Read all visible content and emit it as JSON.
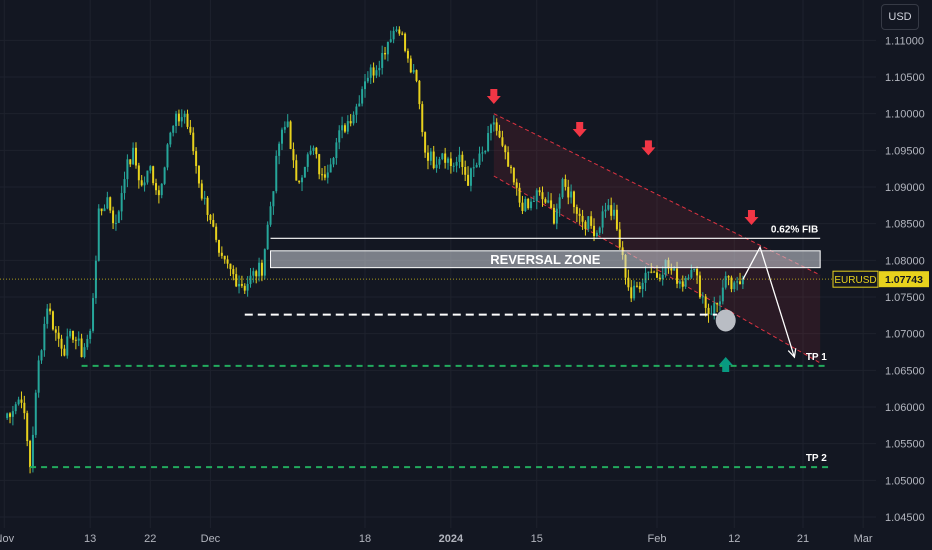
{
  "currency_button": "USD",
  "price_tag": {
    "symbol": "EURUSD",
    "price": "1.07743"
  },
  "chart_data": {
    "type": "candlestick",
    "symbol": "EURUSD",
    "x_ticks": [
      {
        "label": "Nov",
        "bar": 0
      },
      {
        "label": "13",
        "bar": 10
      },
      {
        "label": "22",
        "bar": 17
      },
      {
        "label": "Dec",
        "bar": 24
      },
      {
        "label": "18",
        "bar": 42
      },
      {
        "label": "2024",
        "bar": 52,
        "bold": true
      },
      {
        "label": "15",
        "bar": 62
      },
      {
        "label": "Feb",
        "bar": 76
      },
      {
        "label": "12",
        "bar": 85
      },
      {
        "label": "21",
        "bar": 93
      },
      {
        "label": "Mar",
        "bar": 100
      }
    ],
    "y_ticks": [
      "1.11000",
      "1.10500",
      "1.10000",
      "1.09500",
      "1.09000",
      "1.08500",
      "1.08000",
      "1.07500",
      "1.07000",
      "1.06500",
      "1.06000",
      "1.05500",
      "1.05000",
      "1.04500"
    ],
    "ylim": [
      1.0435,
      1.1155
    ],
    "xlim": [
      -0.5,
      101.5
    ],
    "close_path": [
      [
        0,
        1.0585
      ],
      [
        2,
        1.0615
      ],
      [
        3,
        1.052
      ],
      [
        4,
        1.066
      ],
      [
        5,
        1.074
      ],
      [
        6,
        1.07
      ],
      [
        7,
        1.068
      ],
      [
        8,
        1.07
      ],
      [
        9,
        1.0675
      ],
      [
        10,
        1.07
      ],
      [
        11,
        1.086
      ],
      [
        12,
        1.0885
      ],
      [
        13,
        1.0845
      ],
      [
        14,
        1.092
      ],
      [
        15,
        1.0945
      ],
      [
        16,
        1.09
      ],
      [
        17,
        1.0925
      ],
      [
        18,
        1.089
      ],
      [
        19,
        1.096
      ],
      [
        20,
        1.099
      ],
      [
        21,
        1.1
      ],
      [
        22,
        1.095
      ],
      [
        23,
        1.089
      ],
      [
        24,
        1.086
      ],
      [
        25,
        1.08
      ],
      [
        26,
        1.079
      ],
      [
        27,
        1.0775
      ],
      [
        28,
        1.0765
      ],
      [
        29,
        1.078
      ],
      [
        30,
        1.079
      ],
      [
        32,
        1.096
      ],
      [
        33,
        1.099
      ],
      [
        34,
        1.09
      ],
      [
        35,
        1.0935
      ],
      [
        36,
        1.095
      ],
      [
        37,
        1.091
      ],
      [
        38,
        1.094
      ],
      [
        39,
        1.097
      ],
      [
        40,
        1.099
      ],
      [
        41,
        1.101
      ],
      [
        42,
        1.105
      ],
      [
        43,
        1.106
      ],
      [
        44,
        1.108
      ],
      [
        45,
        1.111
      ],
      [
        46,
        1.112
      ],
      [
        47,
        1.107
      ],
      [
        48,
        1.104
      ],
      [
        49,
        1.095
      ],
      [
        50,
        1.0935
      ],
      [
        51,
        1.095
      ],
      [
        52,
        1.093
      ],
      [
        53,
        1.0935
      ],
      [
        54,
        1.091
      ],
      [
        55,
        1.093
      ],
      [
        56,
        1.095
      ],
      [
        57,
        1.099
      ],
      [
        58,
        1.095
      ],
      [
        59,
        1.0915
      ],
      [
        60,
        1.088
      ],
      [
        61,
        1.087
      ],
      [
        62,
        1.089
      ],
      [
        63,
        1.088
      ],
      [
        64,
        1.086
      ],
      [
        65,
        1.09
      ],
      [
        66,
        1.089
      ],
      [
        67,
        1.086
      ],
      [
        68,
        1.085
      ],
      [
        69,
        1.084
      ],
      [
        70,
        1.0875
      ],
      [
        71,
        1.086
      ],
      [
        72,
        1.08
      ],
      [
        73,
        1.075
      ],
      [
        74,
        1.077
      ],
      [
        75,
        1.079
      ],
      [
        76,
        1.078
      ],
      [
        77,
        1.0795
      ],
      [
        78,
        1.078
      ],
      [
        79,
        1.077
      ],
      [
        80,
        1.0795
      ],
      [
        81,
        1.076
      ],
      [
        82,
        1.073
      ],
      [
        83,
        1.074
      ],
      [
        84,
        1.077
      ],
      [
        85,
        1.076
      ],
      [
        86,
        1.0774
      ]
    ],
    "levels": [
      {
        "name": "0.62% FIB",
        "value": 1.083,
        "style": "solid",
        "color": "#ffffff",
        "from_bar": 31,
        "to_bar": 95
      },
      {
        "name": "",
        "value": 1.0726,
        "style": "dashed",
        "color": "#ffffff",
        "from_bar": 28,
        "to_bar": 83
      },
      {
        "name": "TP 1",
        "value": 1.0656,
        "style": "dashed",
        "color": "#22ab5e",
        "from_bar": 9,
        "to_bar": 96
      },
      {
        "name": "TP 2",
        "value": 1.0518,
        "style": "dashed",
        "color": "#22ab5e",
        "from_bar": 3,
        "to_bar": 96
      }
    ],
    "reversal_zone": {
      "label": "REVERSAL ZONE",
      "top": 1.0813,
      "bottom": 1.079,
      "from_bar": 31,
      "to_bar": 95
    },
    "channel": {
      "upper": [
        [
          57,
          1.1
        ],
        [
          95,
          1.078
        ]
      ],
      "lower": [
        [
          57,
          1.0915
        ],
        [
          95,
          1.066
        ]
      ],
      "color": "#f23645"
    },
    "down_arrows_bars": [
      [
        57,
        1.102
      ],
      [
        67,
        1.0975
      ],
      [
        75,
        1.095
      ],
      [
        87,
        1.0855
      ]
    ],
    "up_arrow": {
      "bar": 84,
      "value": 1.066,
      "color": "#089981"
    },
    "highlight_circle": {
      "bar": 84,
      "value": 1.0718
    },
    "projection": [
      [
        86,
        1.0774
      ],
      [
        88,
        1.0818
      ],
      [
        92,
        1.0668
      ]
    ],
    "current_price_line": 1.07743,
    "colors": {
      "up": "#26a69a",
      "down": "#e8d21d",
      "grid": "#1e222d",
      "text": "#b2b5be"
    }
  }
}
